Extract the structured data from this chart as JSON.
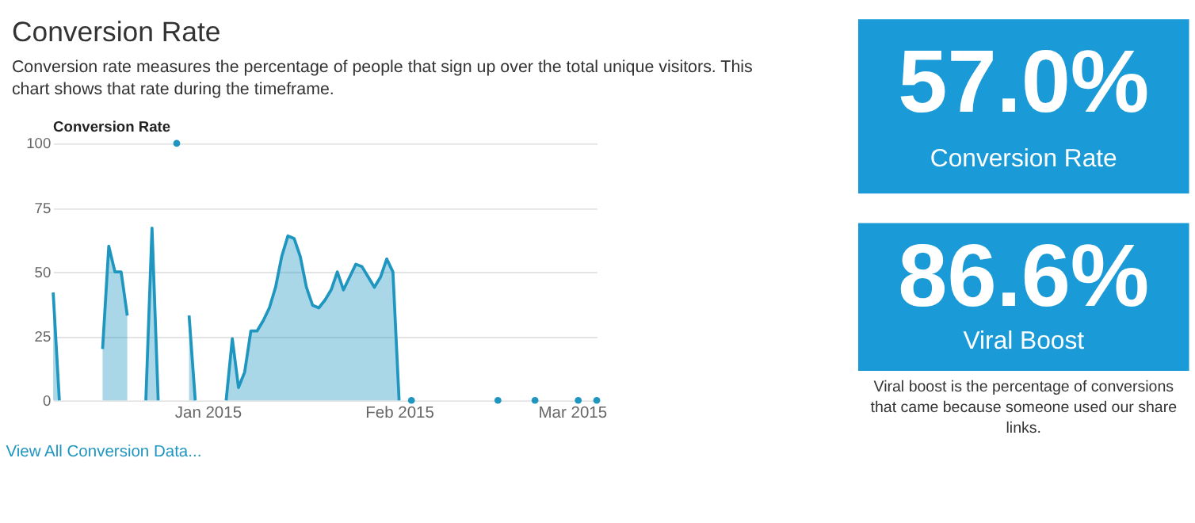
{
  "chart_data": [
    {
      "type": "area",
      "title": "Conversion Rate",
      "subtitle": "Conversion rate measures the percentage of people that sign up over the total unique visitors. This chart shows that rate during the timeframe.",
      "ylabel": "Conversion Rate",
      "annotations": [
        "View All Conversion Data..."
      ],
      "xlim": [
        "2014-12-07",
        "2015-03-05"
      ],
      "xticks": [
        {
          "value": "2015-01-01",
          "label": "Jan 2015"
        },
        {
          "value": "2015-02-01",
          "label": "Feb 2015"
        },
        {
          "value": "2015-03-01",
          "label": "Mar 2015"
        }
      ],
      "ylim": [
        0,
        100
      ],
      "yticks": [
        0,
        25,
        50,
        75,
        100
      ],
      "grid": "y",
      "series": [
        {
          "type": "area",
          "color": "#1e96c0",
          "x": [
            "2014-12-07",
            "2014-12-08",
            "2014-12-09",
            "2014-12-15",
            "2014-12-16",
            "2014-12-17",
            "2014-12-18",
            "2014-12-19",
            "2014-12-20",
            "2014-12-22",
            "2014-12-23",
            "2014-12-24",
            "2014-12-25",
            "2014-12-29",
            "2014-12-30",
            "2014-12-31",
            "2015-01-04",
            "2015-01-05",
            "2015-01-06",
            "2015-01-07",
            "2015-01-08",
            "2015-01-09",
            "2015-01-10",
            "2015-01-11",
            "2015-01-12",
            "2015-01-13",
            "2015-01-14",
            "2015-01-15",
            "2015-01-16",
            "2015-01-17",
            "2015-01-18",
            "2015-01-19",
            "2015-01-20",
            "2015-01-21",
            "2015-01-22",
            "2015-01-23",
            "2015-01-24",
            "2015-01-25",
            "2015-01-26",
            "2015-01-27",
            "2015-01-28",
            "2015-01-29",
            "2015-01-30",
            "2015-01-31",
            "2015-02-01"
          ],
          "values": [
            42,
            0,
            null,
            20,
            60,
            50,
            50,
            33,
            null,
            0,
            67,
            0,
            null,
            33,
            0,
            null,
            0,
            24,
            5,
            11,
            27,
            27,
            31,
            36,
            44,
            56,
            64,
            63,
            56,
            44,
            37,
            36,
            39,
            43,
            50,
            43,
            48,
            53,
            52,
            48,
            44,
            48,
            55,
            50,
            0
          ]
        },
        {
          "type": "scatter",
          "marker": "circle",
          "color": "#1e96c0",
          "x": [
            "2014-12-27",
            "2015-02-03",
            "2015-02-17",
            "2015-02-23",
            "2015-03-02",
            "2015-03-05"
          ],
          "values": [
            100,
            0,
            0,
            0,
            0,
            0
          ]
        }
      ]
    },
    {
      "type": "other",
      "title": "57.0%",
      "subtitle": "Conversion Rate",
      "color": "#1a9ad6"
    },
    {
      "type": "other",
      "title": "86.6%",
      "subtitle": "Viral Boost",
      "color": "#1a9ad6",
      "annotations": [
        "Viral boost is the percentage of conversions that came because someone used our share links."
      ]
    }
  ]
}
